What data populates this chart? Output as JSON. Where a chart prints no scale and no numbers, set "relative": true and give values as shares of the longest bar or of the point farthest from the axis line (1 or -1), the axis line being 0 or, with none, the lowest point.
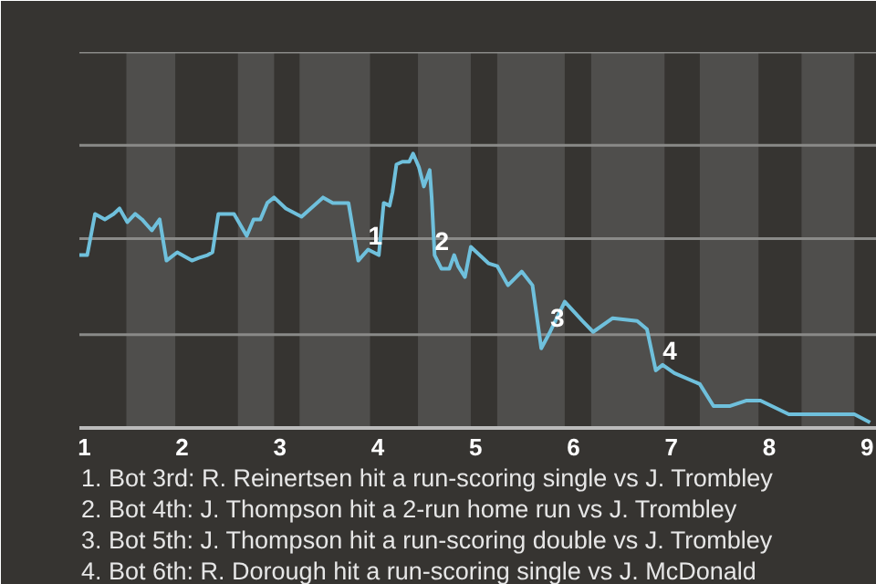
{
  "chart_data": {
    "type": "line",
    "relative": true,
    "marker": "none",
    "line_style": "solid",
    "ref_lines": [
      {
        "axis": "y",
        "value": 0.34,
        "label": null,
        "color": "#8a8a88"
      },
      {
        "axis": "y",
        "value": 0.69,
        "label": null,
        "color": "#8a8a88"
      },
      {
        "axis": "y",
        "value": 1.03,
        "label": null,
        "color": "#8a8a88"
      },
      {
        "axis": "y",
        "value": 1.37,
        "label": null,
        "color": "#8a8a88"
      }
    ],
    "x": [
      0.95,
      1.03,
      1.11,
      1.21,
      1.3,
      1.36,
      1.44,
      1.52,
      1.59,
      1.64,
      1.69,
      1.77,
      1.84,
      1.95,
      2.1,
      2.17,
      2.26,
      2.31,
      2.37,
      2.53,
      2.66,
      2.73,
      2.8,
      2.87,
      2.94,
      3.06,
      3.22,
      3.44,
      3.54,
      3.7,
      3.8,
      3.9,
      4.01,
      4.06,
      4.12,
      4.15,
      4.19,
      4.25,
      4.32,
      4.36,
      4.42,
      4.47,
      4.53,
      4.55,
      4.58,
      4.65,
      4.73,
      4.78,
      4.82,
      4.89,
      4.95,
      5.13,
      5.22,
      5.33,
      5.47,
      5.58,
      5.67,
      5.76,
      5.91,
      6.09,
      6.2,
      6.4,
      6.65,
      6.75,
      6.84,
      6.91,
      7.03,
      7.29,
      7.43,
      7.6,
      7.77,
      7.91,
      8.2,
      8.4,
      8.67,
      8.87,
      9.03
    ],
    "values": [
      0.63,
      0.63,
      0.78,
      0.76,
      0.78,
      0.8,
      0.75,
      0.78,
      0.76,
      0.74,
      0.72,
      0.76,
      0.61,
      0.64,
      0.61,
      0.62,
      0.63,
      0.64,
      0.78,
      0.78,
      0.7,
      0.76,
      0.76,
      0.82,
      0.84,
      0.8,
      0.77,
      0.84,
      0.82,
      0.82,
      0.61,
      0.65,
      0.63,
      0.82,
      0.81,
      0.86,
      0.96,
      0.97,
      0.97,
      1.0,
      0.95,
      0.88,
      0.94,
      0.84,
      0.63,
      0.58,
      0.58,
      0.63,
      0.59,
      0.55,
      0.66,
      0.6,
      0.59,
      0.52,
      0.57,
      0.52,
      0.29,
      0.35,
      0.46,
      0.39,
      0.35,
      0.4,
      0.39,
      0.36,
      0.21,
      0.23,
      0.2,
      0.16,
      0.08,
      0.08,
      0.1,
      0.1,
      0.05,
      0.05,
      0.05,
      0.05,
      0.02
    ],
    "color": "#6fc0dc",
    "xlim": [
      0.95,
      9.1
    ],
    "xticks": [
      1,
      2,
      3,
      4,
      5,
      6,
      7,
      8,
      9
    ],
    "bands": [
      {
        "axis": "x",
        "from": 1.43,
        "to": 1.93,
        "label": null,
        "color": "#4f4e4c"
      },
      {
        "axis": "x",
        "from": 2.57,
        "to": 2.94,
        "label": null,
        "color": "#4f4e4c"
      },
      {
        "axis": "x",
        "from": 3.2,
        "to": 3.92,
        "label": null,
        "color": "#4f4e4c"
      },
      {
        "axis": "x",
        "from": 4.41,
        "to": 4.95,
        "label": null,
        "color": "#4f4e4c"
      },
      {
        "axis": "x",
        "from": 5.22,
        "to": 5.91,
        "label": null,
        "color": "#4f4e4c"
      },
      {
        "axis": "x",
        "from": 6.18,
        "to": 6.93,
        "label": null,
        "color": "#4f4e4c"
      },
      {
        "axis": "x",
        "from": 7.29,
        "to": 7.89,
        "label": null,
        "color": "#4f4e4c"
      },
      {
        "axis": "x",
        "from": 8.33,
        "to": 8.87,
        "label": null,
        "color": "#4f4e4c"
      }
    ],
    "annotations": [
      {
        "text": "1",
        "x": 3.9,
        "y": 0.65
      },
      {
        "text": "2",
        "x": 4.58,
        "y": 0.63
      },
      {
        "text": "3",
        "x": 5.76,
        "y": 0.35
      },
      {
        "text": "4",
        "x": 6.91,
        "y": 0.23
      },
      "1. Bot 3rd: R. Reinertsen hit a run-scoring single vs J. Trombley",
      "2. Bot 4th: J. Thompson hit a 2-run home run vs J. Trombley",
      "3. Bot 5th: J. Thompson hit a run-scoring double vs J. Trombley",
      "4. Bot 6th: R. Dorough hit a run-scoring single vs J. McDonald"
    ]
  }
}
